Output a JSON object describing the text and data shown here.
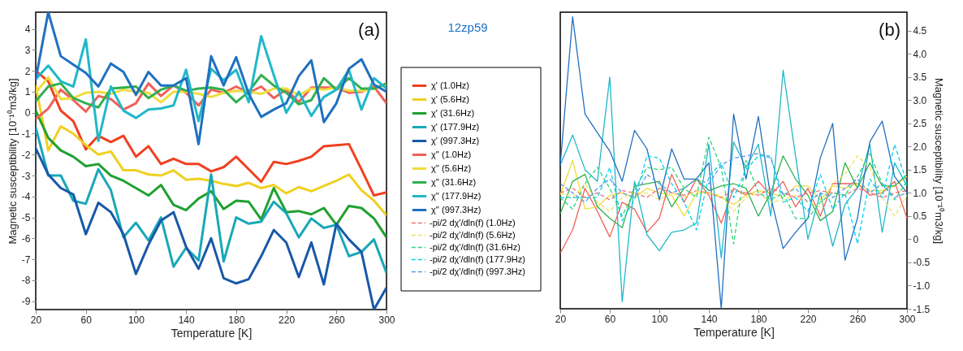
{
  "chart_data": [
    {
      "type": "line",
      "annotations": [
        "(a)"
      ],
      "xlabel": "Temperature [K]",
      "ylabel": "Magnetic susceptibility [10⁻¹⁰m3/kg]",
      "xlim": [
        20,
        300
      ],
      "xticks": [
        20,
        60,
        100,
        140,
        180,
        220,
        260,
        300
      ],
      "ylim": [
        -9.4,
        4.8
      ],
      "yticks": [
        -9,
        -8,
        -7,
        -6,
        -5,
        -4,
        -3,
        -2,
        -1,
        0,
        1,
        2,
        3,
        4
      ],
      "legend": "right",
      "x": [
        20,
        30,
        40,
        50,
        60,
        70,
        80,
        90,
        100,
        110,
        120,
        130,
        140,
        150,
        160,
        170,
        180,
        190,
        200,
        210,
        220,
        230,
        240,
        250,
        260,
        270,
        280,
        290,
        300
      ],
      "series": [
        {
          "name": "χ' (1.0Hz)",
          "color": "#f04020",
          "values": [
            2.0,
            1.5,
            0.1,
            -0.4,
            -1.75,
            -1.1,
            -1.4,
            -1.1,
            -2.1,
            -1.6,
            -2.45,
            -2.2,
            -2.45,
            -2.45,
            -2.8,
            -2.6,
            -2.1,
            -2.7,
            -3.3,
            -2.35,
            -2.45,
            -2.3,
            -2.1,
            -1.6,
            -1.55,
            -1.5,
            -2.7,
            -3.95,
            -3.8
          ]
        },
        {
          "name": "χ' (5.6Hz)",
          "color": "#f0d020",
          "values": [
            1.3,
            -1.8,
            -0.65,
            -1.0,
            -1.55,
            -2.0,
            -1.85,
            -2.75,
            -2.75,
            -2.95,
            -3.0,
            -2.75,
            -3.2,
            -3.15,
            -3.25,
            -3.4,
            -3.5,
            -3.35,
            -3.6,
            -3.45,
            -3.85,
            -3.55,
            -3.75,
            -3.5,
            -3.25,
            -2.95,
            -3.7,
            -4.2,
            -4.9
          ]
        },
        {
          "name": "χ' (31.6Hz)",
          "color": "#20a030",
          "values": [
            0.1,
            -1.2,
            -1.8,
            -2.1,
            -2.55,
            -2.45,
            -3.0,
            -3.25,
            -3.6,
            -3.95,
            -3.45,
            -4.4,
            -4.65,
            -4.1,
            -3.75,
            -4.6,
            -4.2,
            -4.25,
            -5.1,
            -3.6,
            -4.75,
            -4.7,
            -4.85,
            -4.55,
            -5.35,
            -4.45,
            -4.55,
            -5.05,
            -5.95
          ]
        },
        {
          "name": "χ' (177.9Hz)",
          "color": "#18a8b8",
          "values": [
            -0.7,
            -3.0,
            -3.0,
            -4.2,
            -4.35,
            -2.7,
            -3.7,
            -5.95,
            -5.25,
            -6.1,
            -5.0,
            -7.35,
            -6.45,
            -7.05,
            -2.95,
            -7.1,
            -5.0,
            -5.3,
            -5.2,
            -4.25,
            -4.8,
            -5.95,
            -5.05,
            -5.5,
            -5.35,
            -6.85,
            -6.65,
            -6.05,
            -7.65
          ]
        },
        {
          "name": "χ' (997.3Hz)",
          "color": "#1858a8",
          "values": [
            -1.7,
            -2.95,
            -3.6,
            -3.9,
            -5.8,
            -4.3,
            -4.75,
            -5.8,
            -7.7,
            -6.3,
            -5.15,
            -4.75,
            -6.4,
            -7.45,
            -6.0,
            -7.9,
            -8.15,
            -7.95,
            -6.85,
            -5.6,
            -6.2,
            -7.85,
            -6.2,
            -8.2,
            -5.3,
            -6.05,
            -6.65,
            -9.4,
            -8.35
          ]
        },
        {
          "name": "χ'' (1.0Hz)",
          "color": "#f06058",
          "values": [
            -0.3,
            0.2,
            1.1,
            0.6,
            0.05,
            0.8,
            0.65,
            0.15,
            0.45,
            1.4,
            0.8,
            1.3,
            0.95,
            0.35,
            1.1,
            0.95,
            1.25,
            0.95,
            1.25,
            0.7,
            1.1,
            0.5,
            1.2,
            1.2,
            1.2,
            0.95,
            1.0,
            1.25,
            0.45
          ]
        },
        {
          "name": "χ'' (5.6Hz)",
          "color": "#f0dc40",
          "values": [
            0.95,
            1.7,
            0.65,
            0.7,
            0.95,
            1.0,
            0.9,
            1.1,
            1.0,
            0.95,
            0.5,
            1.0,
            1.0,
            0.9,
            0.75,
            0.95,
            1.05,
            1.0,
            0.9,
            1.15,
            1.15,
            0.85,
            1.15,
            1.1,
            1.2,
            1.05,
            1.05,
            1.15,
            1.35
          ]
        },
        {
          "name": "χ'' (31.6Hz)",
          "color": "#30b050",
          "values": [
            0.55,
            1.25,
            1.4,
            0.7,
            0.45,
            0.25,
            1.15,
            1.2,
            1.25,
            0.7,
            1.1,
            1.3,
            1.05,
            1.15,
            1.2,
            1.1,
            0.5,
            1.0,
            1.8,
            1.3,
            0.95,
            0.4,
            0.6,
            1.65,
            1.1,
            1.65,
            1.15,
            1.15,
            1.4
          ]
        },
        {
          "name": "χ'' (177.9Hz)",
          "color": "#20b8c8",
          "values": [
            1.6,
            2.25,
            1.5,
            1.25,
            3.5,
            -1.35,
            1.25,
            0.1,
            -0.25,
            0.15,
            0.2,
            0.35,
            2.05,
            -0.4,
            2.1,
            1.55,
            2.05,
            0.5,
            3.65,
            1.8,
            0.0,
            1.0,
            -0.15,
            0.75,
            1.1,
            2.05,
            0.15,
            1.65,
            1.15
          ]
        },
        {
          "name": "χ'' (997.3Hz)",
          "color": "#2070c0",
          "values": [
            1.6,
            4.8,
            2.7,
            2.3,
            1.9,
            1.25,
            2.35,
            1.95,
            0.85,
            1.95,
            1.3,
            1.3,
            1.65,
            -1.5,
            2.7,
            1.3,
            2.65,
            0.9,
            -0.2,
            0.15,
            0.45,
            1.75,
            2.5,
            -0.45,
            0.45,
            2.1,
            2.55,
            1.35,
            1.0
          ]
        }
      ]
    },
    {
      "type": "line",
      "annotations": [
        "(b)",
        "12zp59"
      ],
      "legend": "left",
      "xlabel": "Temperature [K]",
      "y2label": "Magnetic susceptibility [10⁻¹⁰m3/kg]",
      "xlim": [
        20,
        300
      ],
      "xticks": [
        20,
        60,
        100,
        140,
        180,
        220,
        260,
        300
      ],
      "y2lim": [
        -1.5,
        4.9
      ],
      "y2ticks": [
        -1.5,
        {
          "value": -1,
          "label": "-1.0"
        },
        -0.5,
        0,
        0.5,
        {
          "value": 1,
          "label": "1.0"
        },
        1.5,
        {
          "value": 2,
          "label": "2.0"
        },
        2.5,
        {
          "value": 3,
          "label": "3.0"
        },
        3.5,
        {
          "value": 4,
          "label": "4.0"
        },
        4.5
      ],
      "x": [
        20,
        30,
        40,
        50,
        60,
        70,
        80,
        90,
        100,
        110,
        120,
        130,
        140,
        150,
        160,
        170,
        180,
        190,
        200,
        210,
        220,
        230,
        240,
        250,
        260,
        270,
        280,
        290,
        300
      ],
      "series": [
        {
          "name": "χ'' (1.0Hz)",
          "color": "#f06058",
          "axis": "y2",
          "values": [
            -0.3,
            0.2,
            1.1,
            0.6,
            0.05,
            0.8,
            0.65,
            0.15,
            0.45,
            1.4,
            0.8,
            1.3,
            0.95,
            0.35,
            1.1,
            0.95,
            1.25,
            0.95,
            1.25,
            0.7,
            1.1,
            0.5,
            1.2,
            1.2,
            1.2,
            0.95,
            1.0,
            1.25,
            0.45
          ]
        },
        {
          "name": "χ'' (5.6Hz)",
          "color": "#f0dc40",
          "axis": "y2",
          "values": [
            0.95,
            1.7,
            0.65,
            0.7,
            0.95,
            1.0,
            0.9,
            1.1,
            1.0,
            0.95,
            0.5,
            1.0,
            1.0,
            0.9,
            0.75,
            0.95,
            1.05,
            1.0,
            0.9,
            1.15,
            1.15,
            0.85,
            1.15,
            1.1,
            1.2,
            1.05,
            1.05,
            1.15,
            1.35
          ]
        },
        {
          "name": "χ'' (31.6Hz)",
          "color": "#30b050",
          "axis": "y2",
          "values": [
            0.55,
            1.25,
            1.4,
            0.7,
            0.45,
            0.25,
            1.15,
            1.2,
            1.25,
            0.7,
            1.1,
            1.3,
            1.05,
            1.15,
            1.2,
            1.1,
            0.5,
            1.0,
            1.8,
            1.3,
            0.95,
            0.4,
            0.6,
            1.65,
            1.1,
            1.65,
            1.15,
            1.15,
            1.4
          ]
        },
        {
          "name": "χ'' (177.9Hz)",
          "color": "#20b8c8",
          "axis": "y2",
          "values": [
            1.6,
            2.25,
            1.5,
            1.25,
            3.5,
            -1.35,
            1.25,
            0.1,
            -0.25,
            0.15,
            0.2,
            0.35,
            2.05,
            -0.4,
            2.1,
            1.55,
            2.05,
            0.5,
            3.65,
            1.8,
            0.0,
            1.0,
            -0.15,
            0.75,
            1.1,
            2.05,
            0.15,
            1.65,
            1.15
          ]
        },
        {
          "name": "χ'' (997.3Hz)",
          "color": "#2070c0",
          "axis": "y2",
          "values": [
            1.6,
            4.8,
            2.7,
            2.3,
            1.9,
            1.25,
            2.35,
            1.95,
            0.85,
            1.95,
            1.3,
            1.3,
            1.65,
            -1.5,
            2.7,
            1.3,
            2.65,
            0.9,
            -0.2,
            0.15,
            0.45,
            1.75,
            2.5,
            -0.45,
            0.45,
            2.1,
            2.55,
            1.35,
            1.0
          ]
        },
        {
          "name": "-pi/2 dχ'/dln(f) (1.0Hz)",
          "color": "#f07070",
          "axis": "y2",
          "line_style": "dashed",
          "values": [
            1.0,
            1.1,
            0.9,
            1.0,
            0.85,
            1.05,
            1.0,
            0.9,
            1.1,
            1.0,
            0.95,
            1.05,
            1.0,
            0.9,
            1.05,
            1.0,
            0.95,
            1.1,
            1.0,
            0.9,
            1.0,
            1.05,
            1.0,
            0.95,
            1.1,
            1.0,
            0.9,
            1.0,
            1.05
          ]
        },
        {
          "name": "-pi/2 dχ'/dln(f) (5.6Hz)",
          "color": "#f0e060",
          "axis": "y2",
          "line_style": "dashed",
          "values": [
            1.0,
            0.9,
            1.2,
            0.8,
            0.6,
            0.9,
            1.0,
            1.0,
            0.85,
            1.0,
            0.9,
            1.05,
            1.0,
            0.95,
            0.6,
            0.9,
            1.0,
            0.8,
            0.85,
            0.95,
            0.8,
            0.7,
            1.2,
            1.4,
            1.8,
            1.55,
            0.9,
            0.5,
            0.95
          ]
        },
        {
          "name": "-pi/2 dχ'/dln(f) (31.6Hz)",
          "color": "#2ed47a",
          "axis": "y2",
          "line_style": "dashed",
          "values": [
            0.9,
            0.65,
            1.2,
            1.55,
            1.1,
            0.5,
            1.05,
            1.55,
            1.5,
            1.55,
            1.1,
            0.9,
            2.2,
            1.55,
            -0.1,
            1.7,
            1.0,
            0.85,
            1.0,
            0.45,
            0.45,
            0.8,
            1.0,
            0.95,
            1.35,
            1.85,
            1.2,
            0.85,
            1.25
          ]
        },
        {
          "name": "-pi/2 dχ'/dln(f) (177.9Hz)",
          "color": "#00d4ec",
          "axis": "y2",
          "line_style": "dashed",
          "values": [
            0.9,
            0.9,
            0.9,
            0.9,
            1.55,
            0.4,
            0.85,
            1.8,
            1.75,
            1.2,
            0.8,
            0.2,
            1.35,
            1.65,
            0.9,
            1.5,
            1.8,
            1.8,
            0.8,
            0.9,
            0.6,
            1.4,
            0.65,
            1.0,
            -0.1,
            1.3,
            0.9,
            2.05,
            1.2
          ]
        },
        {
          "name": "-pi/2 dχ'/dln(f) (997.3Hz)",
          "color": "#5a9ae8",
          "axis": "y2",
          "line_style": "dashed",
          "values": [
            1.2,
            1.0,
            0.8,
            1.1,
            1.3,
            1.0,
            0.9,
            1.4,
            1.2,
            1.0,
            1.1,
            1.3,
            1.2,
            1.6,
            1.75,
            1.8,
            1.85,
            1.75,
            0.95,
            1.1,
            0.8,
            1.0,
            0.9,
            1.1,
            1.3,
            1.0,
            1.2,
            0.9,
            1.0
          ]
        }
      ]
    }
  ]
}
